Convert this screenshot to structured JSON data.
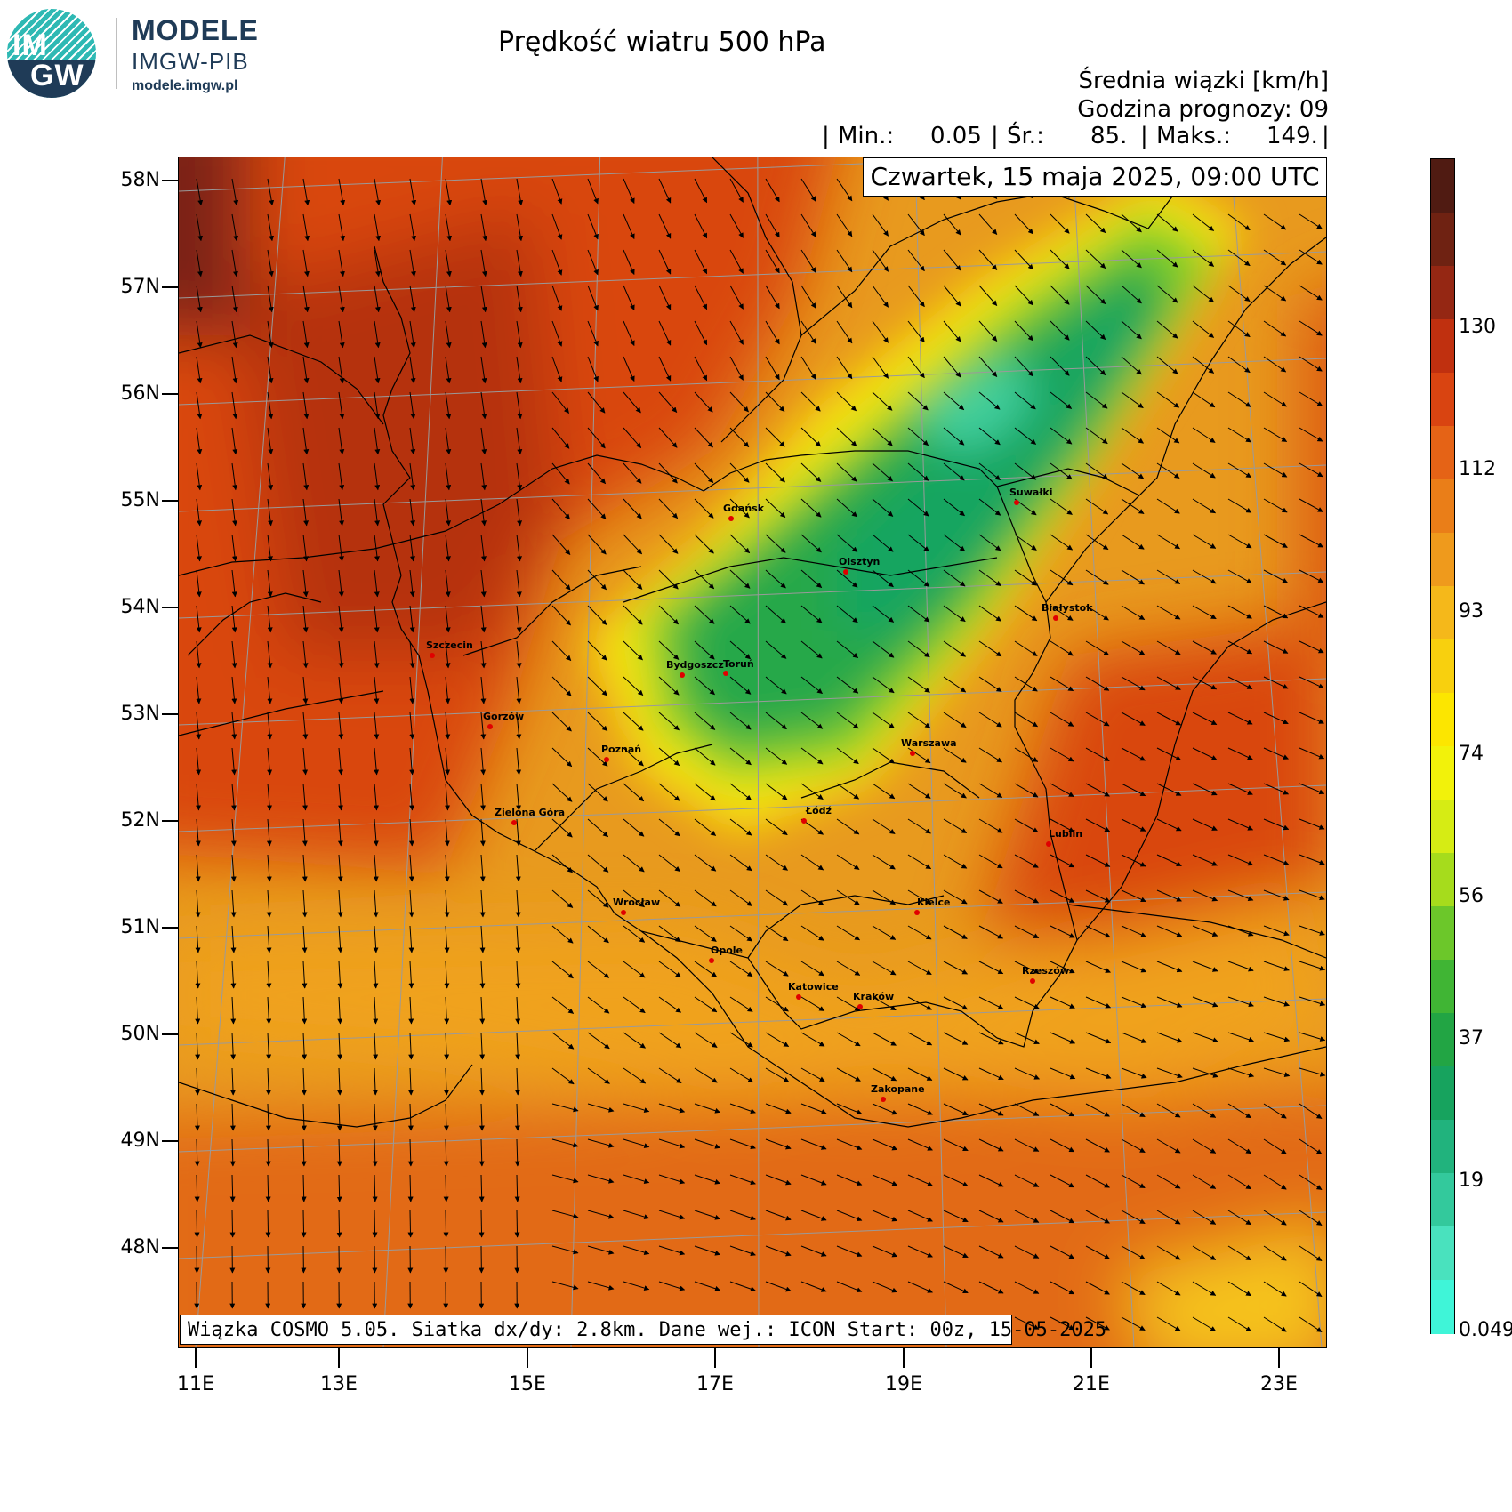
{
  "logo": {
    "mark_line1": "IM",
    "mark_line2": "GW",
    "title": "MODELE",
    "subtitle": "IMGW-PIB",
    "url": "modele.imgw.pl"
  },
  "header": {
    "title": "Prędkość wiatru 500 hPa",
    "units_line": "Średnia wiązki [km/h]",
    "forecast_hour_line": "Godzina prognozy: 09",
    "stats": {
      "sep_left": "|",
      "min_label": "Min.:",
      "min_value": "0.05",
      "sep1": "|",
      "mean_label": "Śr.:",
      "mean_value": "85.",
      "sep2": "|",
      "max_label": "Maks.:",
      "max_value": "149.",
      "sep_right": "|"
    },
    "valid_time": "Czwartek, 15 maja 2025, 09:00 UTC"
  },
  "footer": {
    "model_info": "Wiązka COSMO 5.05. Siatka dx/dy: 2.8km. Dane wej.: ICON Start: 00z, 15-05-2025"
  },
  "axes": {
    "lat_labels": [
      "58N",
      "57N",
      "56N",
      "55N",
      "54N",
      "53N",
      "52N",
      "51N",
      "50N",
      "49N",
      "48N"
    ],
    "lon_labels": [
      "11E",
      "13E",
      "15E",
      "17E",
      "19E",
      "21E",
      "23E"
    ]
  },
  "colorbar": {
    "labels": [
      "130",
      "112",
      "93",
      "74",
      "56",
      "37",
      "19",
      "0.049"
    ],
    "colors": [
      "#501b12",
      "#6f2212",
      "#952713",
      "#c0300f",
      "#d94411",
      "#e56316",
      "#ea7e18",
      "#ef9a1c",
      "#f5b81a",
      "#f8d00e",
      "#fce600",
      "#f2f20a",
      "#d6ec14",
      "#a6dc1c",
      "#6cc72a",
      "#40b534",
      "#22a544",
      "#17a35e",
      "#21b37d",
      "#33c99c",
      "#49e2be",
      "#3ff5d8"
    ]
  },
  "cities": [
    {
      "name": "Gdańsk"
    },
    {
      "name": "Suwałki"
    },
    {
      "name": "Olsztyn"
    },
    {
      "name": "Białystok"
    },
    {
      "name": "Szczecin"
    },
    {
      "name": "Bydgoszcz"
    },
    {
      "name": "Toruń"
    },
    {
      "name": "Gorzów"
    },
    {
      "name": "Poznań"
    },
    {
      "name": "Warszawa"
    },
    {
      "name": "Zielona Góra"
    },
    {
      "name": "Łódź"
    },
    {
      "name": "Lublin"
    },
    {
      "name": "Wrocław"
    },
    {
      "name": "Kielce"
    },
    {
      "name": "Opole"
    },
    {
      "name": "Rzeszów"
    },
    {
      "name": "Katowice"
    },
    {
      "name": "Kraków"
    },
    {
      "name": "Zakopane"
    }
  ]
}
